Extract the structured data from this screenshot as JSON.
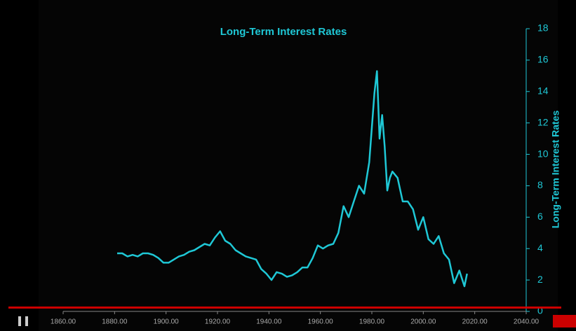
{
  "chart_data": {
    "type": "line",
    "title": "Long-Term Interest Rates",
    "y_label": "Long-Term Interest Rates",
    "x": [
      1881,
      1883,
      1885,
      1887,
      1889,
      1891,
      1893,
      1895,
      1897,
      1899,
      1901,
      1903,
      1905,
      1907,
      1909,
      1911,
      1913,
      1915,
      1917,
      1919,
      1921,
      1923,
      1925,
      1927,
      1929,
      1931,
      1933,
      1935,
      1937,
      1939,
      1941,
      1943,
      1945,
      1947,
      1949,
      1951,
      1953,
      1955,
      1957,
      1959,
      1961,
      1963,
      1965,
      1967,
      1969,
      1971,
      1973,
      1975,
      1977,
      1979,
      1981,
      1982,
      1983,
      1984,
      1985,
      1986,
      1987,
      1988,
      1990,
      1992,
      1994,
      1996,
      1998,
      2000,
      2002,
      2004,
      2006,
      2008,
      2010,
      2012,
      2014,
      2016,
      2017
    ],
    "values": [
      3.7,
      3.7,
      3.5,
      3.6,
      3.5,
      3.7,
      3.7,
      3.6,
      3.4,
      3.1,
      3.1,
      3.3,
      3.5,
      3.6,
      3.8,
      3.9,
      4.1,
      4.3,
      4.2,
      4.7,
      5.1,
      4.5,
      4.3,
      3.9,
      3.7,
      3.5,
      3.4,
      3.3,
      2.7,
      2.4,
      2.0,
      2.5,
      2.4,
      2.2,
      2.3,
      2.5,
      2.8,
      2.8,
      3.4,
      4.2,
      4.0,
      4.2,
      4.3,
      5.0,
      6.7,
      6.0,
      7.0,
      8.0,
      7.5,
      9.5,
      13.9,
      15.3,
      11.0,
      12.5,
      10.5,
      7.7,
      8.5,
      8.9,
      8.5,
      7.0,
      7.0,
      6.5,
      5.2,
      6.0,
      4.6,
      4.3,
      4.8,
      3.7,
      3.3,
      1.8,
      2.6,
      1.6,
      2.4
    ],
    "color": "#1fc8d6",
    "xlim": [
      1860,
      2040
    ],
    "xticks": [
      {
        "value": 1860,
        "label": "1860.00"
      },
      {
        "value": 1880,
        "label": "1880.00"
      },
      {
        "value": 1900,
        "label": "1900.00"
      },
      {
        "value": 1920,
        "label": "1920.00"
      },
      {
        "value": 1940,
        "label": "1940.00"
      },
      {
        "value": 1960,
        "label": "1960.00"
      },
      {
        "value": 1980,
        "label": "1980.00"
      },
      {
        "value": 2000,
        "label": "2000.00"
      },
      {
        "value": 2020,
        "label": "2020.00"
      },
      {
        "value": 2040,
        "label": "2040.00"
      }
    ],
    "ylim": [
      0,
      18
    ],
    "yticks": [
      0,
      2,
      4,
      6,
      8,
      10,
      12,
      14,
      16,
      18
    ],
    "y_axis_side": "right",
    "grid": false
  }
}
